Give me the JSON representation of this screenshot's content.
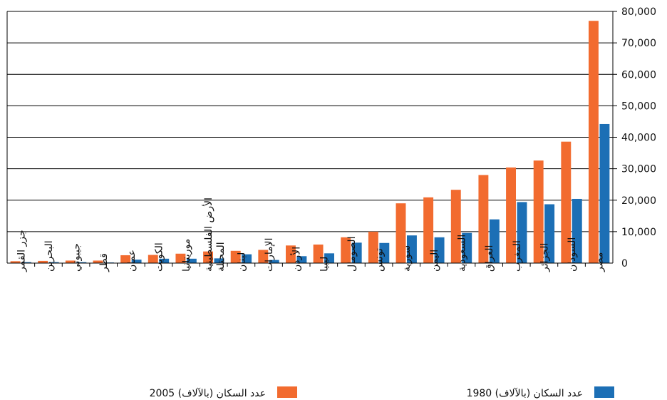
{
  "chart_data": {
    "type": "bar",
    "categories": [
      "جزر القمر",
      "البحرين",
      "جيبوتي",
      "قطر",
      "عمان",
      "الكويت",
      "موريتانيا",
      "الأرض الفلسطينية المحتلة",
      "لبنان",
      "الإمارات",
      "الأردن",
      "ليبيا",
      "الصومال",
      "تونس",
      "سورية",
      "اليمن",
      "السعودية",
      "العراق",
      "المغرب",
      "الجزائر",
      "السودان",
      "مصر"
    ],
    "series": [
      {
        "name": "عدد السكان (بالآلاف) 2005",
        "color": "#f26b2f",
        "values": [
          600,
          700,
          800,
          800,
          2500,
          2600,
          3000,
          3700,
          3900,
          4200,
          5600,
          5900,
          8200,
          10000,
          19000,
          20900,
          23300,
          28000,
          30400,
          32600,
          38600,
          77000
        ]
      },
      {
        "name": "عدد السكان (بالآلاف) 1980",
        "color": "#1c6fb5",
        "values": [
          300,
          300,
          300,
          200,
          1100,
          1400,
          1400,
          1500,
          2800,
          1000,
          2200,
          3100,
          6500,
          6400,
          8800,
          8200,
          9600,
          13900,
          19400,
          18700,
          20400,
          44200
        ]
      }
    ],
    "yticks": [
      "0",
      "10,000",
      "20,000",
      "30,000",
      "40,000",
      "50,000",
      "60,000",
      "70,000",
      "80,000"
    ],
    "ylim": [
      0,
      80000
    ],
    "grid": true,
    "legend_position": "bottom",
    "title": "",
    "xlabel": "",
    "ylabel": ""
  }
}
